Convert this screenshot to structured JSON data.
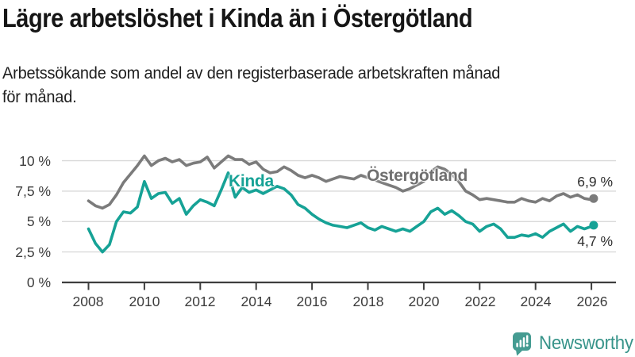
{
  "header": {
    "title": "Lägre arbetslöshet i Kinda än i Östergötland",
    "subtitle_line1": "Arbetssökande som andel av den registerbaserade arbetskraften månad",
    "subtitle_line2": "för månad."
  },
  "chart_data": {
    "type": "line",
    "title": "Lägre arbetslöshet i Kinda än i Östergötland",
    "subtitle": "Arbetssökande som andel av den registerbaserade arbetskraften månad för månad.",
    "unit": "%",
    "xlim": [
      2008,
      2026.2
    ],
    "ylim": [
      0,
      10.8
    ],
    "grid": "horizontal",
    "legend_position": "inline-labels",
    "xticks": [
      {
        "value": 2008,
        "label": "2008"
      },
      {
        "value": 2010,
        "label": "2010"
      },
      {
        "value": 2012,
        "label": "2012"
      },
      {
        "value": 2014,
        "label": "2014"
      },
      {
        "value": 2016,
        "label": "2016"
      },
      {
        "value": 2018,
        "label": "2018"
      },
      {
        "value": 2020,
        "label": "2020"
      },
      {
        "value": 2022,
        "label": "2022"
      },
      {
        "value": 2024,
        "label": "2024"
      },
      {
        "value": 2026,
        "label": "2026"
      }
    ],
    "yticks": [
      {
        "value": 10,
        "label": "10 %"
      },
      {
        "value": 7.5,
        "label": "7,5 %"
      },
      {
        "value": 5,
        "label": "5 %"
      },
      {
        "value": 2.5,
        "label": "2,5 %"
      },
      {
        "value": 0,
        "label": "0 %"
      }
    ],
    "series": [
      {
        "name": "Östergötland",
        "color": "#7b7b7b",
        "label_color": "#6f6f6f",
        "end_label": "6,9 %",
        "end_value": 6.9,
        "points": [
          [
            2008.0,
            6.7
          ],
          [
            2008.25,
            6.3
          ],
          [
            2008.5,
            6.1
          ],
          [
            2008.75,
            6.4
          ],
          [
            2009.0,
            7.2
          ],
          [
            2009.25,
            8.2
          ],
          [
            2009.5,
            8.9
          ],
          [
            2009.75,
            9.6
          ],
          [
            2010.0,
            10.4
          ],
          [
            2010.25,
            9.6
          ],
          [
            2010.5,
            10.0
          ],
          [
            2010.75,
            10.2
          ],
          [
            2011.0,
            9.9
          ],
          [
            2011.25,
            10.1
          ],
          [
            2011.5,
            9.6
          ],
          [
            2011.75,
            9.8
          ],
          [
            2012.0,
            9.9
          ],
          [
            2012.25,
            10.3
          ],
          [
            2012.5,
            9.4
          ],
          [
            2012.75,
            9.9
          ],
          [
            2013.0,
            10.4
          ],
          [
            2013.25,
            10.1
          ],
          [
            2013.5,
            10.1
          ],
          [
            2013.75,
            9.7
          ],
          [
            2014.0,
            9.9
          ],
          [
            2014.25,
            9.3
          ],
          [
            2014.5,
            9.0
          ],
          [
            2014.75,
            9.1
          ],
          [
            2015.0,
            9.5
          ],
          [
            2015.25,
            9.2
          ],
          [
            2015.5,
            8.8
          ],
          [
            2015.75,
            8.6
          ],
          [
            2016.0,
            8.8
          ],
          [
            2016.25,
            8.6
          ],
          [
            2016.5,
            8.3
          ],
          [
            2016.75,
            8.5
          ],
          [
            2017.0,
            8.7
          ],
          [
            2017.25,
            8.6
          ],
          [
            2017.5,
            8.5
          ],
          [
            2017.75,
            8.8
          ],
          [
            2018.0,
            8.6
          ],
          [
            2018.25,
            8.4
          ],
          [
            2018.5,
            8.2
          ],
          [
            2018.75,
            8.0
          ],
          [
            2019.0,
            7.8
          ],
          [
            2019.25,
            7.5
          ],
          [
            2019.5,
            7.7
          ],
          [
            2019.75,
            8.0
          ],
          [
            2020.0,
            8.3
          ],
          [
            2020.25,
            9.1
          ],
          [
            2020.5,
            9.5
          ],
          [
            2020.75,
            9.3
          ],
          [
            2021.0,
            8.9
          ],
          [
            2021.25,
            8.3
          ],
          [
            2021.5,
            7.5
          ],
          [
            2021.75,
            7.2
          ],
          [
            2022.0,
            6.8
          ],
          [
            2022.25,
            6.9
          ],
          [
            2022.5,
            6.8
          ],
          [
            2022.75,
            6.7
          ],
          [
            2023.0,
            6.6
          ],
          [
            2023.25,
            6.6
          ],
          [
            2023.5,
            6.9
          ],
          [
            2023.75,
            6.7
          ],
          [
            2024.0,
            6.6
          ],
          [
            2024.25,
            6.9
          ],
          [
            2024.5,
            6.7
          ],
          [
            2024.75,
            7.1
          ],
          [
            2025.0,
            7.3
          ],
          [
            2025.25,
            7.0
          ],
          [
            2025.5,
            7.2
          ],
          [
            2025.75,
            6.9
          ],
          [
            2026.0,
            6.8
          ],
          [
            2026.08,
            6.9
          ]
        ]
      },
      {
        "name": "Kinda",
        "color": "#16a296",
        "label_color": "#16a296",
        "end_label": "4,7 %",
        "end_value": 4.7,
        "points": [
          [
            2008.0,
            4.4
          ],
          [
            2008.25,
            3.2
          ],
          [
            2008.5,
            2.5
          ],
          [
            2008.75,
            3.1
          ],
          [
            2009.0,
            5.0
          ],
          [
            2009.25,
            5.8
          ],
          [
            2009.5,
            5.7
          ],
          [
            2009.75,
            6.2
          ],
          [
            2010.0,
            8.3
          ],
          [
            2010.25,
            6.9
          ],
          [
            2010.5,
            7.3
          ],
          [
            2010.75,
            7.4
          ],
          [
            2011.0,
            6.5
          ],
          [
            2011.25,
            6.9
          ],
          [
            2011.5,
            5.6
          ],
          [
            2011.75,
            6.3
          ],
          [
            2012.0,
            6.8
          ],
          [
            2012.25,
            6.6
          ],
          [
            2012.5,
            6.3
          ],
          [
            2012.75,
            7.6
          ],
          [
            2013.0,
            9.0
          ],
          [
            2013.25,
            7.0
          ],
          [
            2013.5,
            7.8
          ],
          [
            2013.75,
            7.4
          ],
          [
            2014.0,
            7.6
          ],
          [
            2014.25,
            7.3
          ],
          [
            2014.5,
            7.6
          ],
          [
            2014.75,
            7.9
          ],
          [
            2015.0,
            7.7
          ],
          [
            2015.25,
            7.2
          ],
          [
            2015.5,
            6.4
          ],
          [
            2015.75,
            6.1
          ],
          [
            2016.0,
            5.6
          ],
          [
            2016.25,
            5.2
          ],
          [
            2016.5,
            4.9
          ],
          [
            2016.75,
            4.7
          ],
          [
            2017.0,
            4.6
          ],
          [
            2017.25,
            4.5
          ],
          [
            2017.5,
            4.7
          ],
          [
            2017.75,
            4.9
          ],
          [
            2018.0,
            4.5
          ],
          [
            2018.25,
            4.3
          ],
          [
            2018.5,
            4.6
          ],
          [
            2018.75,
            4.4
          ],
          [
            2019.0,
            4.2
          ],
          [
            2019.25,
            4.4
          ],
          [
            2019.5,
            4.2
          ],
          [
            2019.75,
            4.6
          ],
          [
            2020.0,
            5.0
          ],
          [
            2020.25,
            5.8
          ],
          [
            2020.5,
            6.1
          ],
          [
            2020.75,
            5.6
          ],
          [
            2021.0,
            5.9
          ],
          [
            2021.25,
            5.5
          ],
          [
            2021.5,
            5.0
          ],
          [
            2021.75,
            4.8
          ],
          [
            2022.0,
            4.2
          ],
          [
            2022.25,
            4.6
          ],
          [
            2022.5,
            4.8
          ],
          [
            2022.75,
            4.4
          ],
          [
            2023.0,
            3.7
          ],
          [
            2023.25,
            3.7
          ],
          [
            2023.5,
            3.9
          ],
          [
            2023.75,
            3.8
          ],
          [
            2024.0,
            4.0
          ],
          [
            2024.25,
            3.7
          ],
          [
            2024.5,
            4.2
          ],
          [
            2024.75,
            4.5
          ],
          [
            2025.0,
            4.8
          ],
          [
            2025.25,
            4.2
          ],
          [
            2025.5,
            4.6
          ],
          [
            2025.75,
            4.4
          ],
          [
            2026.0,
            4.6
          ],
          [
            2026.08,
            4.7
          ]
        ]
      }
    ],
    "style": {
      "gridline_color": "#d9d9d9",
      "axis_color": "#3e3e3e",
      "line_width": 3.6,
      "end_dot_radius": 5.5
    }
  },
  "footer": {
    "brand": "Newsworthy",
    "brand_color": "#38948a",
    "icon_color": "#459c92"
  }
}
